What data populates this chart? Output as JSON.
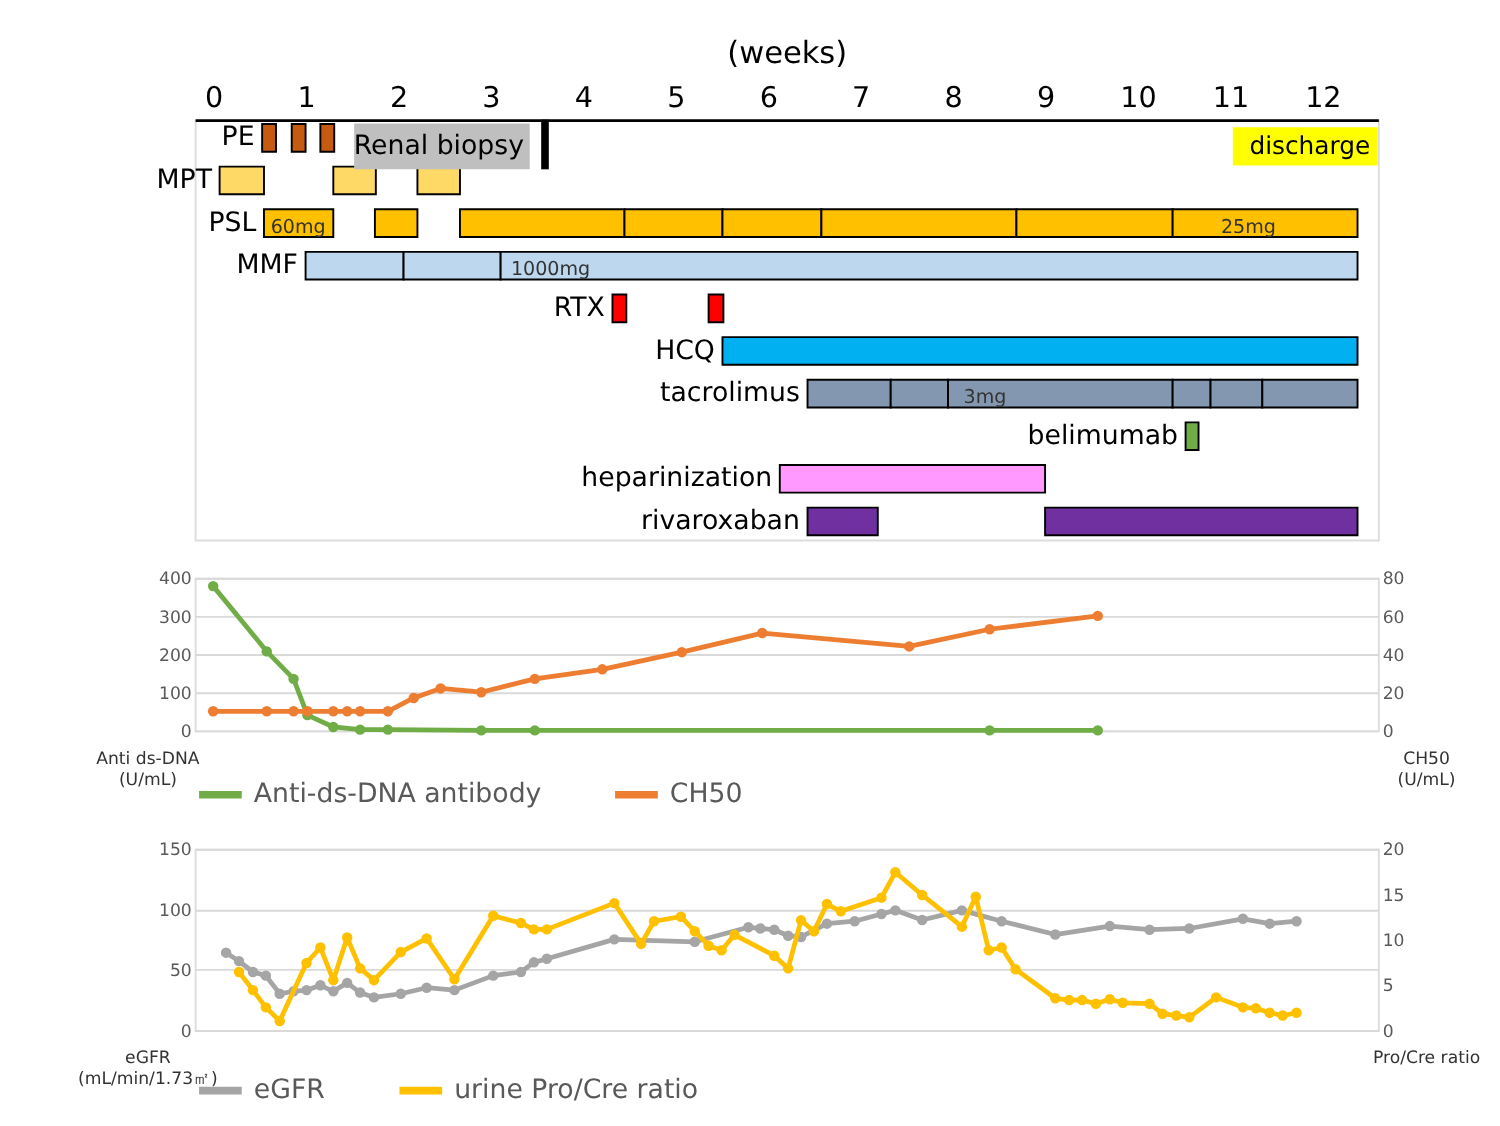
{
  "chart_data": [
    {
      "type": "bar",
      "orientation": "horizontal",
      "xlabel": "(weeks)",
      "xlim": [
        -0.2,
        12.6
      ],
      "xticks": [
        0,
        1,
        2,
        3,
        4,
        5,
        6,
        7,
        8,
        9,
        10,
        11,
        12
      ],
      "grid": false,
      "legend": false,
      "categories": [
        "PE",
        "MPT",
        "PSL",
        "MMF",
        "RTX",
        "HCQ",
        "tacrolimus",
        "belimumab",
        "heparinization",
        "rivaroxaban"
      ],
      "series": [
        {
          "colors": [
            "#c55a11",
            "#ffd966",
            "#ffc000",
            "#bdd7ee",
            "#ff0000",
            "#00b0f0",
            "#8497b0",
            "#70ad47",
            "#ff99ff",
            "#7030a0"
          ],
          "base": [
            0.53,
            0.07,
            0.55,
            1.0,
            4.32,
            5.51,
            6.43,
            10.52,
            6.13,
            6.43
          ],
          "values": [
            0.15,
            0.48,
            0.75,
            1.06,
            0.15,
            6.87,
            0.9,
            0.14,
            2.87,
            0.76
          ]
        },
        {
          "colors": [
            "#c55a11",
            "#ffd966",
            "#ffc000",
            "#bdd7ee",
            "#ff0000",
            null,
            "#8497b0",
            null,
            null,
            "#7030a0"
          ],
          "base": [
            0.85,
            1.3,
            1.75,
            2.06,
            5.36,
            null,
            7.33,
            null,
            null,
            9.0
          ],
          "values": [
            0.15,
            0.46,
            0.46,
            1.05,
            0.16,
            null,
            0.62,
            null,
            null,
            3.38
          ]
        },
        {
          "colors": [
            "#c55a11",
            "#ffd966",
            "#ffc000",
            "#bdd7ee",
            null,
            null,
            "#8497b0",
            null,
            null,
            null
          ],
          "base": [
            1.16,
            2.21,
            2.67,
            3.11,
            null,
            null,
            7.95,
            null,
            null,
            null
          ],
          "values": [
            0.15,
            0.46,
            1.78,
            9.27,
            null,
            null,
            2.43,
            null,
            null,
            null
          ]
        },
        {
          "colors": [
            null,
            null,
            "#ffc000",
            null,
            null,
            null,
            "#8497b0",
            null,
            null,
            null
          ],
          "base": [
            null,
            null,
            4.45,
            null,
            null,
            null,
            10.38,
            null,
            null,
            null
          ],
          "values": [
            null,
            null,
            1.06,
            null,
            null,
            null,
            0.41,
            null,
            null,
            null
          ]
        },
        {
          "colors": [
            null,
            null,
            "#ffc000",
            null,
            null,
            null,
            "#8497b0",
            null,
            null,
            null
          ],
          "base": [
            null,
            null,
            5.51,
            null,
            null,
            null,
            10.79,
            null,
            null,
            null
          ],
          "values": [
            null,
            null,
            1.07,
            null,
            null,
            null,
            0.56,
            null,
            null,
            null
          ]
        },
        {
          "colors": [
            null,
            null,
            "#ffc000",
            null,
            null,
            null,
            "#8497b0",
            null,
            null,
            null
          ],
          "base": [
            null,
            null,
            6.58,
            null,
            null,
            null,
            11.35,
            null,
            null,
            null
          ],
          "values": [
            null,
            null,
            2.11,
            null,
            null,
            null,
            1.03,
            null,
            null,
            null
          ]
        },
        {
          "color": "#ffc000",
          "base": [
            null,
            null,
            8.69,
            null,
            null,
            null,
            null,
            null,
            null,
            null
          ],
          "values": [
            null,
            null,
            1.69,
            null,
            null,
            null,
            null,
            null,
            null,
            null
          ]
        },
        {
          "color": "#ffc000",
          "base": [
            null,
            null,
            10.38,
            null,
            null,
            null,
            null,
            null,
            null,
            null
          ],
          "values": [
            null,
            null,
            2.0,
            null,
            null,
            null,
            null,
            null,
            null,
            null
          ]
        }
      ],
      "ref_lines": [
        {
          "axis": "x",
          "value": 3.59,
          "label": "Renal biopsy",
          "color": "#000000"
        }
      ],
      "annotations": [
        "discharge",
        {
          "text": "60mg",
          "x": 0.92,
          "y": "PSL"
        },
        {
          "text": "25mg",
          "x": 11.2,
          "y": "PSL"
        },
        {
          "text": "1000mg",
          "x": 3.65,
          "y": "MMF"
        },
        {
          "text": "3mg",
          "x": 8.35,
          "y": "tacrolimus"
        }
      ]
    },
    {
      "type": "line",
      "xlim": [
        -0.2,
        12.6
      ],
      "tick_labels": "y",
      "ylabel": "Anti ds-DNA\n(U/mL)",
      "y2label": "CH50\n(U/mL)",
      "ylim": [
        0,
        400
      ],
      "yticks": [
        0,
        100,
        200,
        300,
        400
      ],
      "y2lim": [
        0,
        80
      ],
      "y2ticks": [
        0,
        20,
        40,
        60,
        80
      ],
      "grid": "y",
      "legend": "bottom",
      "marker": "circle",
      "line_style": "solid",
      "series": [
        {
          "name": "Anti-ds-DNA antibody",
          "color": "#70ad47",
          "x": [
            0.0,
            0.58,
            0.87,
            1.02,
            1.3,
            1.59,
            1.89,
            2.9,
            3.48,
            8.4,
            9.57
          ],
          "values": [
            378,
            207,
            135,
            40,
            9,
            2,
            2,
            0,
            0,
            0,
            0
          ]
        },
        {
          "name": "CH50",
          "color": "#ed7d31",
          "axis": "y2",
          "x": [
            0.0,
            0.58,
            0.87,
            1.02,
            1.3,
            1.45,
            1.59,
            1.89,
            2.17,
            2.46,
            2.9,
            3.48,
            4.21,
            5.07,
            5.94,
            7.53,
            8.4,
            9.57
          ],
          "values": [
            10,
            10,
            10,
            10,
            10,
            10,
            10,
            10,
            17,
            22,
            20,
            27,
            32,
            41,
            51,
            44,
            53,
            60
          ]
        }
      ]
    },
    {
      "type": "line",
      "xlim": [
        -0.2,
        12.6
      ],
      "tick_labels": "y",
      "ylabel": "eGFR\n(mL/min/1.73㎡)",
      "y2label": "Pro/Cre ratio",
      "ylim": [
        0,
        150
      ],
      "yticks": [
        0,
        50,
        100,
        150
      ],
      "y2lim": [
        0,
        20
      ],
      "y2ticks": [
        0,
        5,
        10,
        15,
        20
      ],
      "grid": "y",
      "legend": "bottom",
      "marker": "circle",
      "line_style": "solid",
      "series": [
        {
          "name": "eGFR",
          "color": "#a5a5a5",
          "x": [
            0.14,
            0.28,
            0.43,
            0.57,
            0.72,
            0.87,
            1.01,
            1.16,
            1.3,
            1.45,
            1.59,
            1.74,
            2.03,
            2.31,
            2.61,
            3.03,
            3.33,
            3.47,
            3.61,
            4.34,
            5.21,
            5.79,
            5.92,
            6.07,
            6.22,
            6.36,
            6.64,
            6.94,
            7.23,
            7.38,
            7.67,
            8.1,
            8.53,
            9.11,
            9.7,
            10.13,
            10.56,
            11.14,
            11.43,
            11.72
          ],
          "values": [
            64,
            57,
            48,
            45,
            30,
            32,
            33,
            37,
            32,
            39,
            31,
            27,
            30,
            35,
            33,
            45,
            48,
            56,
            59,
            75,
            73,
            85,
            84,
            83,
            78,
            77,
            88,
            90,
            96,
            99,
            91,
            99,
            90,
            79,
            86,
            83,
            84,
            92,
            88,
            90
          ]
        },
        {
          "name": "urine Pro/Cre ratio",
          "color": "#ffc000",
          "axis": "y2",
          "x": [
            0.28,
            0.43,
            0.57,
            0.72,
            1.01,
            1.16,
            1.3,
            1.45,
            1.59,
            1.74,
            2.03,
            2.31,
            2.61,
            3.03,
            3.33,
            3.47,
            3.61,
            4.34,
            4.63,
            4.77,
            5.06,
            5.21,
            5.36,
            5.5,
            5.64,
            6.07,
            6.22,
            6.36,
            6.5,
            6.64,
            6.79,
            7.23,
            7.38,
            7.67,
            8.1,
            8.25,
            8.39,
            8.53,
            8.68,
            9.11,
            9.26,
            9.4,
            9.55,
            9.7,
            9.84,
            10.13,
            10.27,
            10.42,
            10.56,
            10.85,
            11.14,
            11.28,
            11.43,
            11.57,
            11.72
          ],
          "values": [
            6.4,
            4.4,
            2.5,
            1.0,
            7.4,
            9.1,
            5.5,
            10.2,
            6.8,
            5.5,
            8.6,
            10.1,
            5.6,
            12.6,
            11.8,
            11.1,
            11.1,
            14.0,
            9.5,
            12.0,
            12.5,
            10.9,
            9.3,
            8.8,
            10.5,
            8.2,
            6.8,
            12.1,
            10.9,
            13.9,
            13.1,
            14.6,
            17.4,
            14.9,
            11.4,
            14.7,
            8.8,
            9.1,
            6.7,
            3.5,
            3.3,
            3.3,
            2.9,
            3.4,
            3.0,
            2.9,
            1.8,
            1.6,
            1.4,
            3.6,
            2.5,
            2.4,
            1.9,
            1.6,
            1.9
          ]
        }
      ]
    }
  ]
}
